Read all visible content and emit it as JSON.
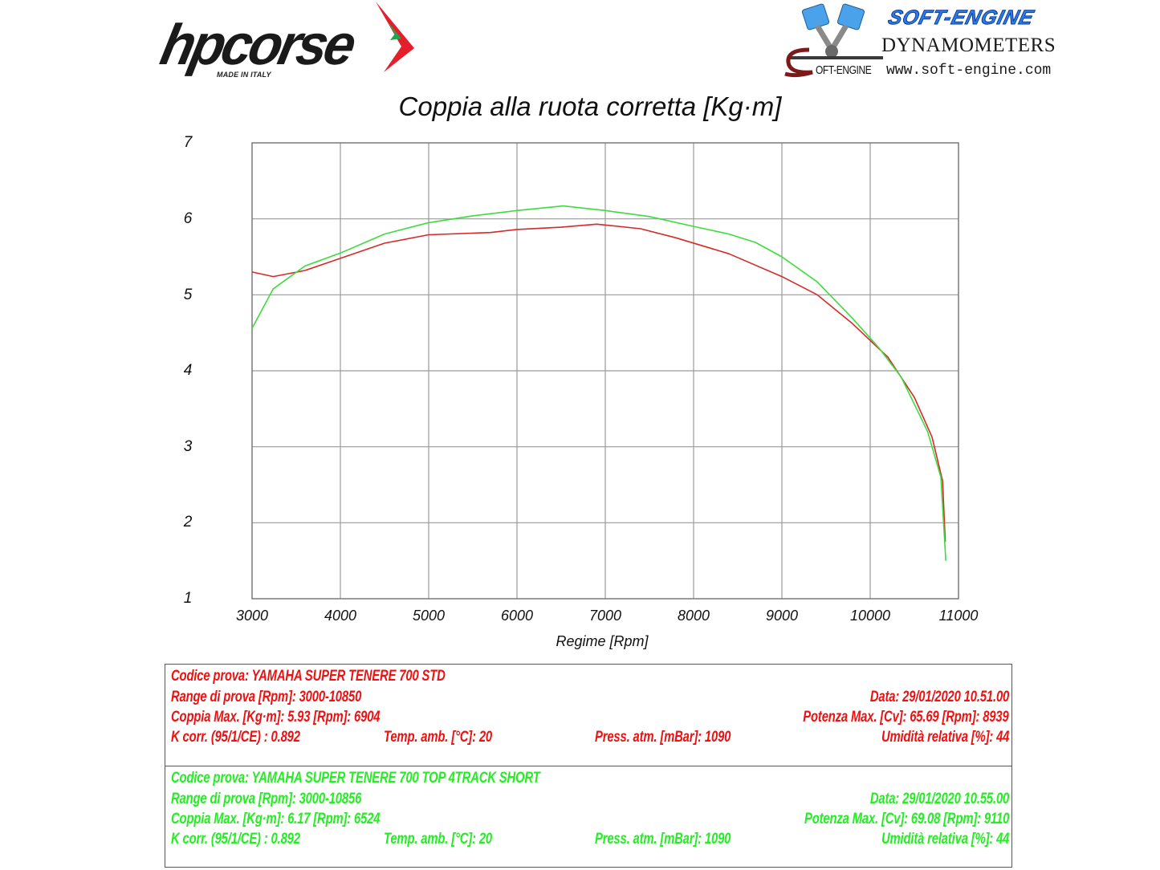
{
  "logos": {
    "left": {
      "brand": "hpcorse",
      "tagline": "MADE IN ITALY",
      "icon": "italian-flag-chevron-icon"
    },
    "right": {
      "brand": "SOFT-ENGINE",
      "subtitle": "DYNAMOMETERS",
      "url": "www.soft-engine.com",
      "mark_text": "OFT-ENGINE",
      "icon": "v-twin-piston-icon"
    }
  },
  "colors": {
    "red_series": "#d62a2a",
    "green_series": "#3ddc3d",
    "red_text": "#ee1111",
    "green_text": "#22ee22",
    "grid": "#9a9a9a"
  },
  "chart_data": {
    "type": "line",
    "title": "Coppia alla ruota corretta [Kg·m]",
    "xlabel": "Regime [Rpm]",
    "ylabel": "",
    "xlim": [
      3000,
      11000
    ],
    "ylim": [
      1,
      7
    ],
    "grid": true,
    "legend": "none (series identified by colored info table below chart)",
    "x_ticks": [
      "3000",
      "4000",
      "5000",
      "6000",
      "7000",
      "8000",
      "9000",
      "10000",
      "11000"
    ],
    "y_ticks": [
      "7",
      "6",
      "5",
      "4",
      "3",
      "2",
      "1"
    ],
    "series": [
      {
        "name": "YAMAHA SUPER TENERE 700 STD",
        "color": "#d62a2a",
        "x": [
          3000,
          3240,
          3600,
          4000,
          4500,
          5000,
          5700,
          6000,
          6500,
          6904,
          7400,
          7800,
          8400,
          9000,
          9400,
          9800,
          10200,
          10500,
          10700,
          10820,
          10850
        ],
        "values": [
          5.3,
          5.24,
          5.32,
          5.48,
          5.68,
          5.79,
          5.82,
          5.86,
          5.89,
          5.93,
          5.87,
          5.75,
          5.54,
          5.24,
          5.0,
          4.62,
          4.18,
          3.65,
          3.13,
          2.55,
          1.75
        ]
      },
      {
        "name": "YAMAHA SUPER TENERE 700 TOP 4TRACK SHORT",
        "color": "#3ddc3d",
        "x": [
          3000,
          3240,
          3600,
          4000,
          4500,
          5000,
          5500,
          6000,
          6524,
          7000,
          7500,
          8000,
          8400,
          8700,
          9000,
          9400,
          9800,
          10100,
          10350,
          10650,
          10800,
          10856
        ],
        "values": [
          4.56,
          5.08,
          5.38,
          5.55,
          5.8,
          5.95,
          6.04,
          6.11,
          6.17,
          6.11,
          6.03,
          5.9,
          5.8,
          5.69,
          5.5,
          5.17,
          4.69,
          4.3,
          3.92,
          3.2,
          2.6,
          1.5
        ]
      }
    ]
  },
  "tests": [
    {
      "codice": "Codice prova: YAMAHA SUPER TENERE 700 STD",
      "range": "Range di prova [Rpm]: 3000-10850",
      "data": "Data: 29/01/2020   10.51.00",
      "coppia": "Coppia Max. [Kg·m]: 5.93   [Rpm]: 6904",
      "potenza": "Potenza Max. [Cv]: 65.69   [Rpm]: 8939",
      "kcorr": "K corr. (95/1/CE) : 0.892",
      "temp": "Temp. amb. [°C]: 20",
      "press": "Press. atm. [mBar]: 1090",
      "umidita": "Umidità relativa [%]: 44"
    },
    {
      "codice": "Codice prova: YAMAHA SUPER TENERE 700 TOP 4TRACK SHORT",
      "range": "Range di prova [Rpm]: 3000-10856",
      "data": "Data: 29/01/2020   10.55.00",
      "coppia": "Coppia Max. [Kg·m]: 6.17   [Rpm]: 6524",
      "potenza": "Potenza Max. [Cv]: 69.08   [Rpm]: 9110",
      "kcorr": "K corr. (95/1/CE) : 0.892",
      "temp": "Temp. amb. [°C]: 20",
      "press": "Press. atm. [mBar]: 1090",
      "umidita": "Umidità relativa [%]: 44"
    }
  ]
}
